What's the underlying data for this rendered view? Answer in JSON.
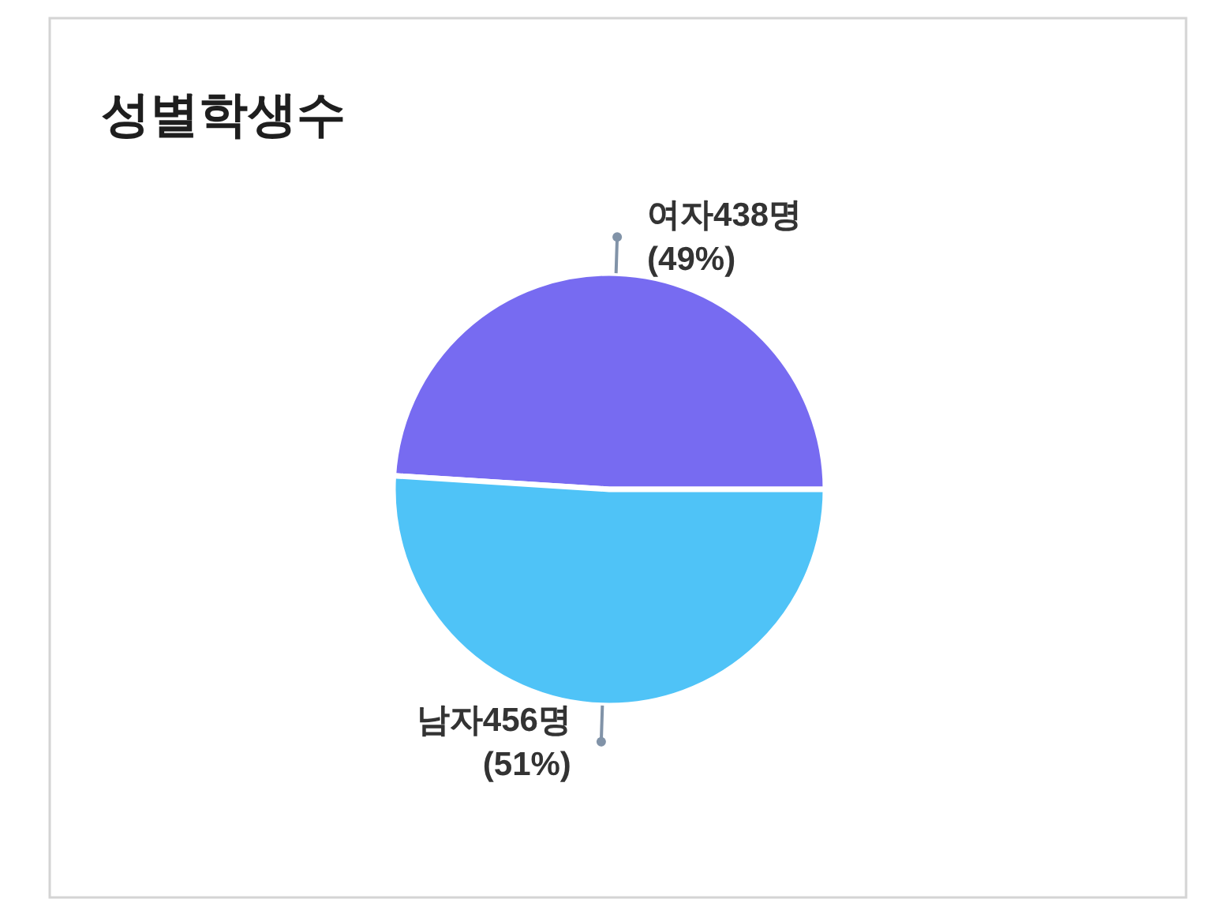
{
  "chart_data": {
    "type": "pie",
    "title": "성별학생수",
    "categories": [
      "여자",
      "남자"
    ],
    "values": [
      438,
      456
    ],
    "colors": [
      "#776bf1",
      "#4fc3f7"
    ],
    "value_labels": [
      "438명 (49%)",
      "456명 (51%)"
    ]
  }
}
